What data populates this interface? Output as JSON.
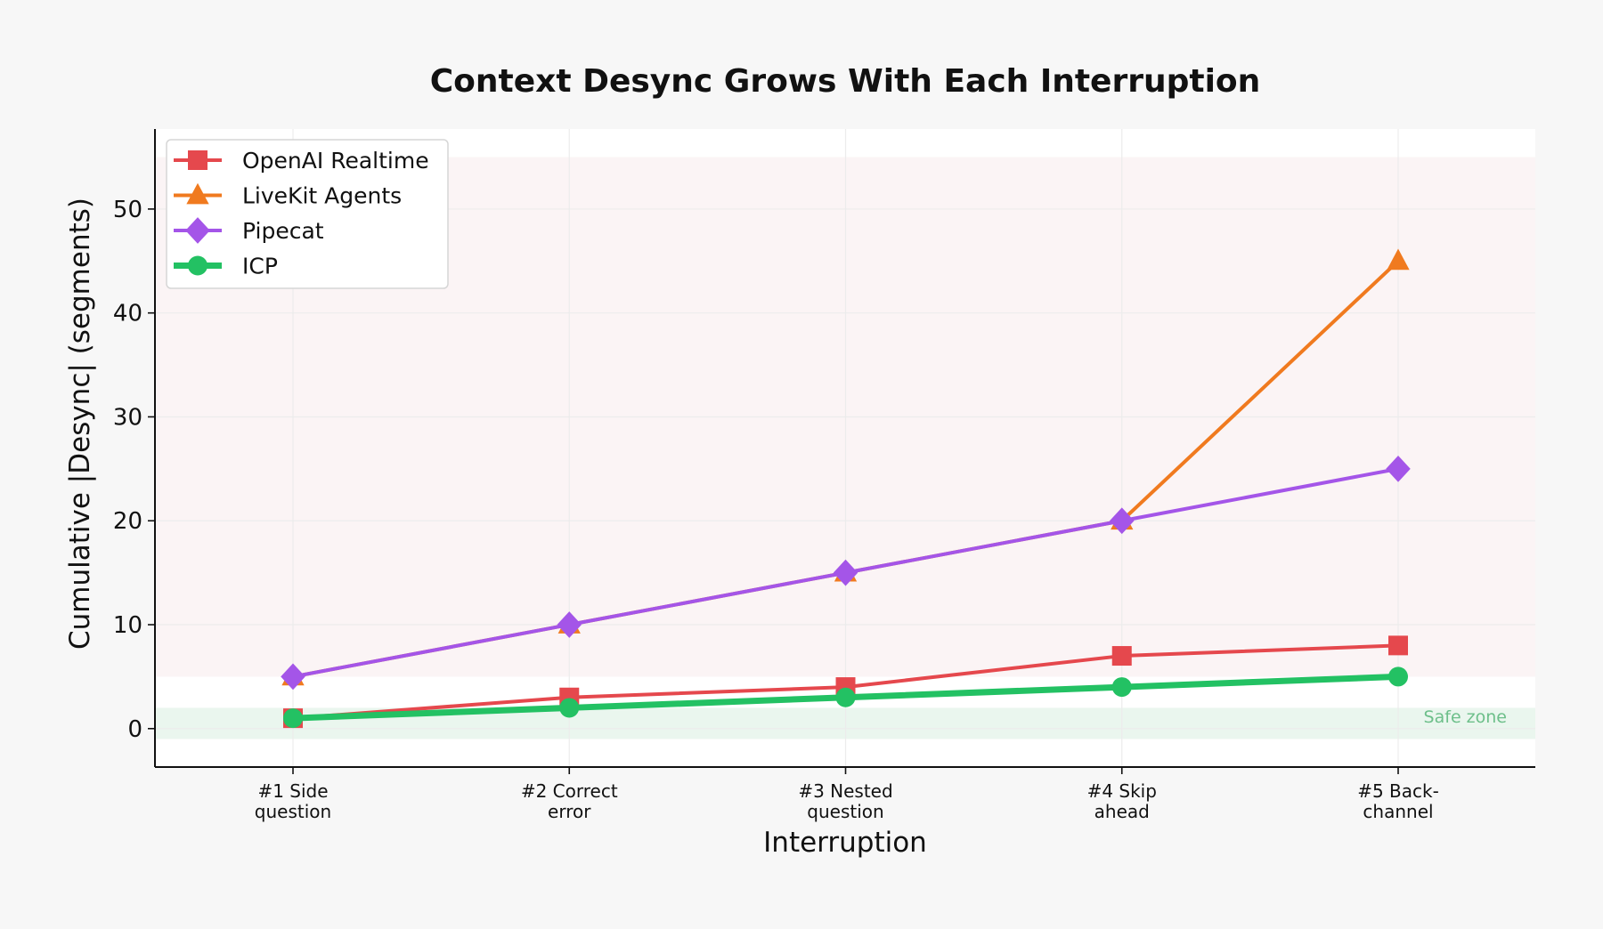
{
  "chart_data": {
    "type": "line",
    "title": "Context Desync Grows With Each Interruption",
    "xlabel": "Interruption",
    "ylabel": "Cumulative |Desync| (segments)",
    "categories": [
      "#1 Side\nquestion",
      "#2 Correct\nerror",
      "#3 Nested\nquestion",
      "#4 Skip\nahead",
      "#5 Back-\nchannel"
    ],
    "ylim": [
      -3.7,
      57.7
    ],
    "yticks": [
      0,
      10,
      20,
      30,
      40,
      50
    ],
    "grid": true,
    "legend_position": "top-left",
    "bands": [
      {
        "label": "",
        "y0": 5,
        "y1": 55,
        "color": "#fbf4f5"
      },
      {
        "label": "Safe zone",
        "y0": -1,
        "y1": 2,
        "color": "#eaf6ee",
        "text_color": "#6dbf8a"
      }
    ],
    "series": [
      {
        "name": "OpenAI Realtime",
        "values": [
          1,
          3,
          4,
          7,
          8
        ],
        "color": "#e5484d",
        "marker": "square"
      },
      {
        "name": "LiveKit Agents",
        "values": [
          5,
          10,
          15,
          20,
          45
        ],
        "color": "#f07a1f",
        "marker": "triangle"
      },
      {
        "name": "Pipecat",
        "values": [
          5,
          10,
          15,
          20,
          25
        ],
        "color": "#a455e8",
        "marker": "diamond"
      },
      {
        "name": "ICP",
        "values": [
          1,
          2,
          3,
          4,
          5
        ],
        "color": "#23c163",
        "marker": "circle"
      }
    ]
  }
}
